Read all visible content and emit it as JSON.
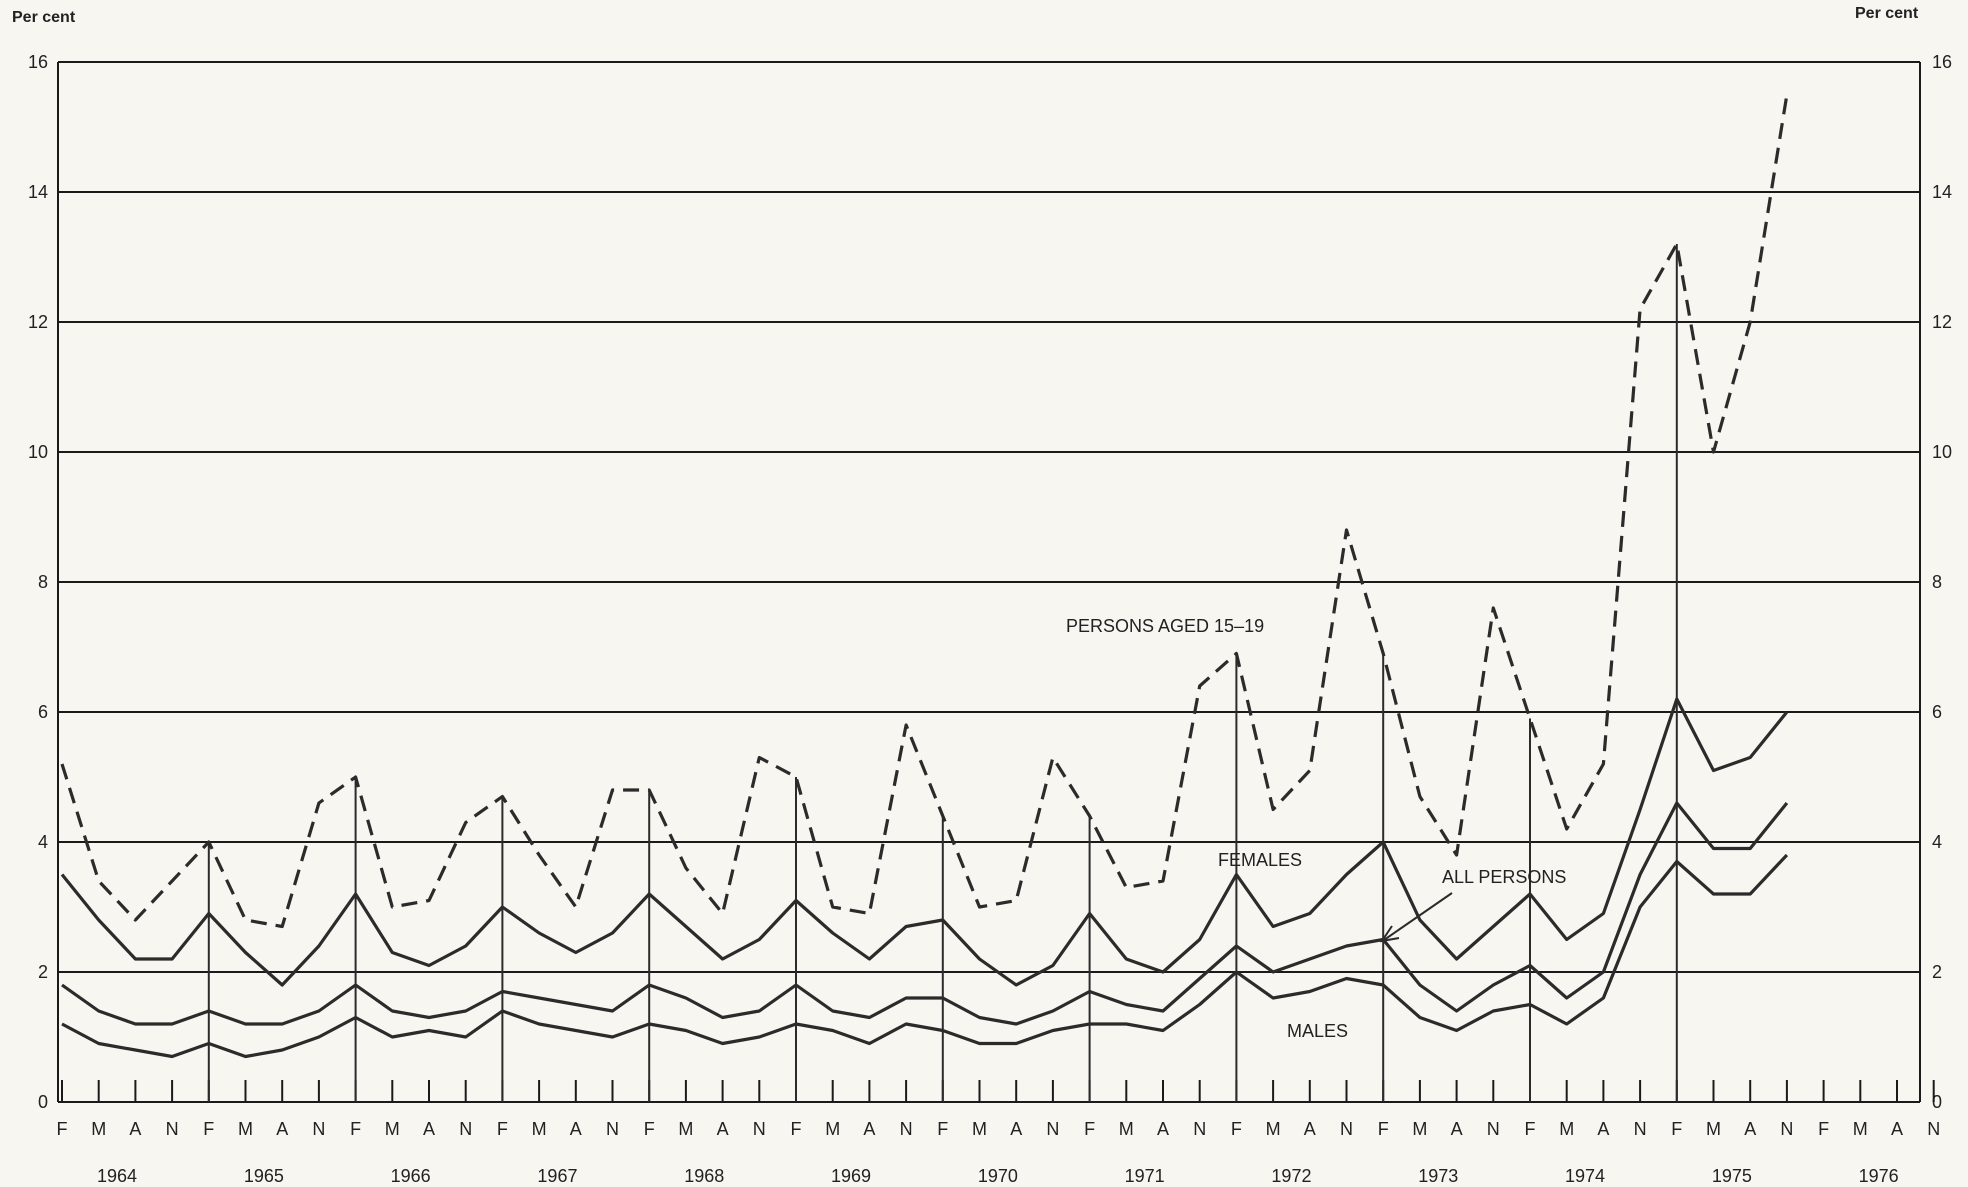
{
  "chart_data": {
    "type": "line",
    "y_unit_left": "Per cent",
    "y_unit_right": "Per cent",
    "ylim": [
      0,
      16
    ],
    "yticks": [
      0,
      2,
      4,
      6,
      8,
      10,
      12,
      14,
      16
    ],
    "grid": true,
    "x_month_labels": [
      "F",
      "M",
      "A",
      "N",
      "F",
      "M",
      "A",
      "N",
      "F",
      "M",
      "A",
      "N",
      "F",
      "M",
      "A",
      "N",
      "F",
      "M",
      "A",
      "N",
      "F",
      "M",
      "A",
      "N",
      "F",
      "M",
      "A",
      "N",
      "F",
      "M",
      "A",
      "N",
      "F",
      "M",
      "A",
      "N",
      "F",
      "M",
      "A",
      "N",
      "F",
      "M",
      "A",
      "N",
      "F",
      "M",
      "A",
      "N",
      "F",
      "M",
      "A",
      "N"
    ],
    "x_month_labels_display": [
      "F",
      "M",
      "A",
      "N",
      "F",
      "M",
      "A",
      "N",
      "F",
      "M",
      "A",
      "N",
      "F",
      "M",
      "A",
      "N",
      "F",
      "M",
      "A",
      "N",
      "F",
      "M",
      "A",
      "N",
      "F",
      "M",
      "A",
      "N",
      "F",
      "M",
      "A",
      "N",
      "F",
      "M",
      "A",
      "N",
      "F",
      "M",
      "A",
      "N",
      "F",
      "M",
      "A",
      "N",
      "F",
      "M",
      "A",
      "N",
      "F",
      "M",
      "A",
      "N"
    ],
    "x_years": [
      "1964",
      "1965",
      "1966",
      "1967",
      "1968",
      "1969",
      "1970",
      "1971",
      "1972",
      "1973",
      "1974",
      "1975",
      "1976"
    ],
    "series": [
      {
        "name": "PERSONS AGED 15–19",
        "style": "dashed",
        "start_index": 0,
        "values": [
          5.2,
          3.4,
          2.8,
          3.4,
          4.0,
          2.8,
          2.7,
          4.6,
          5.0,
          3.0,
          3.1,
          4.3,
          4.7,
          3.8,
          3.0,
          4.8,
          4.8,
          3.6,
          2.9,
          5.3,
          5.0,
          3.0,
          2.9,
          5.8,
          4.4,
          3.0,
          3.1,
          5.3,
          4.4,
          3.3,
          3.4,
          6.4,
          6.9,
          4.5,
          5.1,
          8.8,
          6.9,
          4.7,
          3.8,
          7.6,
          5.9,
          4.2,
          5.2,
          12.2,
          13.2,
          10.0,
          12.0,
          15.5
        ]
      },
      {
        "name": "FEMALES",
        "style": "solid",
        "start_index": 0,
        "values": [
          3.5,
          2.8,
          2.2,
          2.2,
          2.9,
          2.3,
          1.8,
          2.4,
          3.2,
          2.3,
          2.1,
          2.4,
          3.0,
          2.6,
          2.3,
          2.6,
          3.2,
          2.7,
          2.2,
          2.5,
          3.1,
          2.6,
          2.2,
          2.7,
          2.8,
          2.2,
          1.8,
          2.1,
          2.9,
          2.2,
          2.0,
          2.5,
          3.5,
          2.7,
          2.9,
          3.5,
          4.0,
          2.8,
          2.2,
          2.7,
          3.2,
          2.5,
          2.9,
          4.5,
          6.2,
          5.1,
          5.3,
          6.0
        ]
      },
      {
        "name": "ALL PERSONS",
        "style": "solid",
        "start_index": 0,
        "values": [
          1.8,
          1.4,
          1.2,
          1.2,
          1.4,
          1.2,
          1.2,
          1.4,
          1.8,
          1.4,
          1.3,
          1.4,
          1.7,
          1.6,
          1.5,
          1.4,
          1.8,
          1.6,
          1.3,
          1.4,
          1.8,
          1.4,
          1.3,
          1.6,
          1.6,
          1.3,
          1.2,
          1.4,
          1.7,
          1.5,
          1.4,
          1.9,
          2.4,
          2.0,
          2.2,
          2.4,
          2.5,
          1.8,
          1.4,
          1.8,
          2.1,
          1.6,
          2.0,
          3.5,
          4.6,
          3.9,
          3.9,
          4.6
        ]
      },
      {
        "name": "MALES",
        "style": "solid",
        "start_index": 0,
        "values": [
          1.2,
          0.9,
          0.8,
          0.7,
          0.9,
          0.7,
          0.8,
          1.0,
          1.3,
          1.0,
          1.1,
          1.0,
          1.4,
          1.2,
          1.1,
          1.0,
          1.2,
          1.1,
          0.9,
          1.0,
          1.2,
          1.1,
          0.9,
          1.2,
          1.1,
          0.9,
          0.9,
          1.1,
          1.2,
          1.2,
          1.1,
          1.5,
          2.0,
          1.6,
          1.7,
          1.9,
          1.8,
          1.3,
          1.1,
          1.4,
          1.5,
          1.2,
          1.6,
          3.0,
          3.7,
          3.2,
          3.2,
          3.8
        ]
      }
    ],
    "annotations": {
      "persons_label": "PERSONS AGED 15–19",
      "females_label": "FEMALES",
      "all_label": "ALL PERSONS",
      "males_label": "MALES"
    },
    "colors": {
      "line": "#2b2b2b",
      "grid": "#1a1a1a",
      "background": "#f7f6f1"
    }
  }
}
